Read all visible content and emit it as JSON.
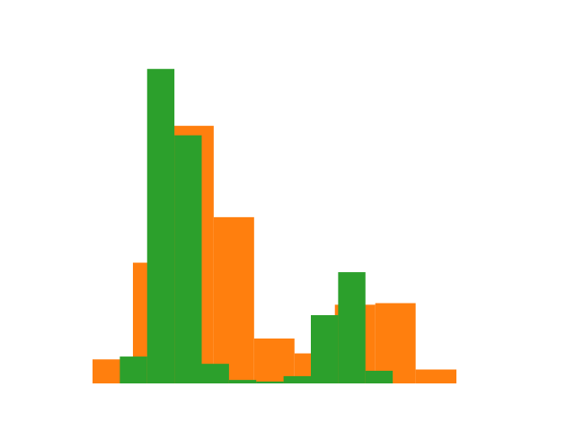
{
  "chart_data": {
    "type": "bar",
    "title": "",
    "xlabel": "",
    "ylabel": "",
    "xlim": [
      0,
      100
    ],
    "ylim": [
      0,
      100
    ],
    "grid": false,
    "legend": "none",
    "series": [
      {
        "name": "orange",
        "color": "#ff7f0e",
        "bins": [
          {
            "x0": 0.0,
            "x1": 11.1,
            "value": 7.6
          },
          {
            "x0": 11.1,
            "x1": 22.2,
            "value": 38.2
          },
          {
            "x0": 22.2,
            "x1": 33.3,
            "value": 81.5
          },
          {
            "x0": 33.3,
            "x1": 44.4,
            "value": 52.6
          },
          {
            "x0": 44.4,
            "x1": 55.5,
            "value": 14.2
          },
          {
            "x0": 55.5,
            "x1": 66.6,
            "value": 9.5
          },
          {
            "x0": 66.6,
            "x1": 77.7,
            "value": 24.9
          },
          {
            "x0": 77.7,
            "x1": 88.8,
            "value": 25.4
          },
          {
            "x0": 88.8,
            "x1": 100.0,
            "value": 4.4
          }
        ]
      },
      {
        "name": "green",
        "color": "#2ca02c",
        "bins": [
          {
            "x0": 7.5,
            "x1": 15.0,
            "value": 8.5
          },
          {
            "x0": 15.0,
            "x1": 22.5,
            "value": 99.5
          },
          {
            "x0": 22.5,
            "x1": 30.0,
            "value": 78.5
          },
          {
            "x0": 30.0,
            "x1": 37.5,
            "value": 6.2
          },
          {
            "x0": 37.5,
            "x1": 45.0,
            "value": 1.1
          },
          {
            "x0": 45.0,
            "x1": 52.5,
            "value": 0.6
          },
          {
            "x0": 52.5,
            "x1": 60.0,
            "value": 2.3
          },
          {
            "x0": 60.0,
            "x1": 67.5,
            "value": 21.6
          },
          {
            "x0": 67.5,
            "x1": 75.0,
            "value": 35.2
          },
          {
            "x0": 75.0,
            "x1": 82.5,
            "value": 4.0
          }
        ]
      }
    ]
  }
}
